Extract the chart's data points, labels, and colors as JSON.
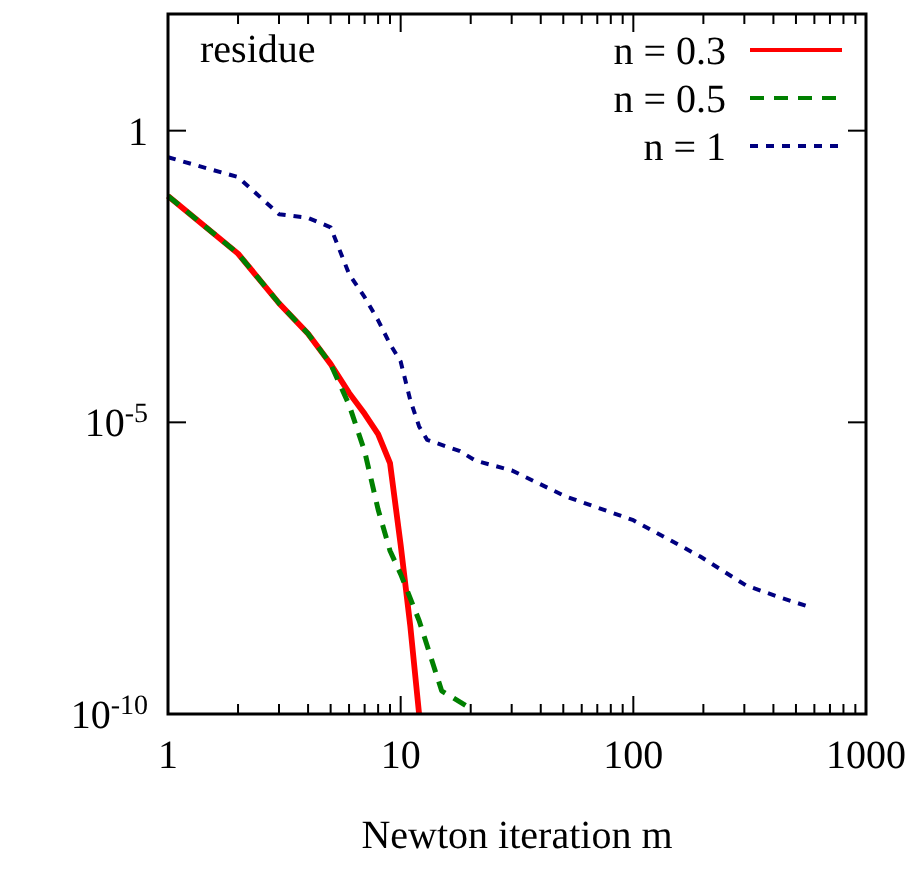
{
  "chart_data": {
    "type": "line",
    "xlabel": "Newton iteration m",
    "annotations": [
      "residue"
    ],
    "log": "xy",
    "grid": false,
    "legend": "top right",
    "marker": "none",
    "xlim": [
      1,
      1000
    ],
    "xticks": [
      1,
      10,
      100,
      1000
    ],
    "ylim": [
      1e-10,
      100
    ],
    "yticks": [
      {
        "value": 1e-10,
        "label": "10$^{-10}$"
      },
      {
        "value": 1e-05,
        "label": "10$^{-5}$"
      },
      1
    ],
    "series": [
      {
        "name": "n = 0.3",
        "color": "#ff0000",
        "line_style": "solid",
        "x": [
          1,
          2,
          3,
          4,
          5,
          6,
          7,
          8,
          9,
          10,
          11,
          12
        ],
        "values": [
          0.076,
          0.0078,
          0.0011,
          0.00033,
          0.0001,
          3.2e-05,
          1.4e-05,
          6.3e-06,
          2e-06,
          7.9e-08,
          3.2e-09,
          1e-10
        ]
      },
      {
        "name": "n = 0.5",
        "color": "#008000",
        "line_style": "dashed",
        "x": [
          1,
          2,
          3,
          4,
          5,
          6,
          7,
          8,
          9,
          10,
          12,
          15,
          19
        ],
        "values": [
          0.076,
          0.0078,
          0.0011,
          0.00033,
          0.0001,
          2e-05,
          3.2e-06,
          3.2e-07,
          6.3e-08,
          2.5e-08,
          4e-09,
          2.5e-10,
          1.4e-10
        ]
      },
      {
        "name": "n = 1",
        "color": "#000080",
        "line_style": "dotted",
        "x": [
          1,
          2,
          3,
          4,
          5,
          6,
          7,
          8,
          9,
          10,
          11,
          12,
          13,
          18,
          21,
          30,
          51,
          100,
          194,
          305,
          425,
          550
        ],
        "values": [
          0.35,
          0.16,
          0.037,
          0.032,
          0.022,
          0.0035,
          0.0014,
          0.00056,
          0.00022,
          0.00011,
          2.4e-05,
          8.5e-06,
          5e-06,
          3.2e-06,
          2.2e-06,
          1.5e-06,
          5.4e-07,
          2.1e-07,
          5e-08,
          1.6e-08,
          1e-08,
          7.2e-09
        ]
      }
    ]
  }
}
